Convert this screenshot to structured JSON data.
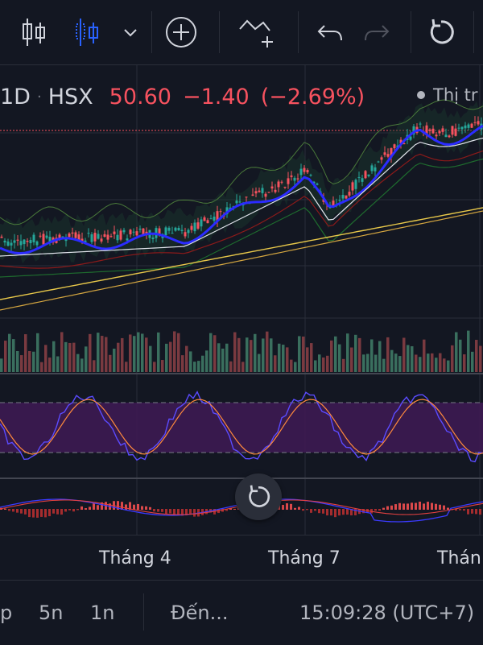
{
  "symbol_bar": {
    "interval": "1D",
    "exchange": "HSX",
    "last_price": "50.60",
    "change": "−1.40",
    "change_pct": "(−2.69%)",
    "market_status": "Thị tr"
  },
  "toolbar": {
    "icons": [
      "candles-icon",
      "candles-selected-icon",
      "chevron-down-icon",
      "add-circle-icon",
      "indicators-icon",
      "undo-icon",
      "redo-icon",
      "reset-icon"
    ]
  },
  "time_axis": {
    "labels": [
      "Tháng 4",
      "Tháng 7",
      "Thán"
    ]
  },
  "bottom_bar": {
    "range_1": "p",
    "range_2": "5n",
    "range_3": "1n",
    "goto_label": "Đến...",
    "clock": "15:09:28 (UTC+7)"
  },
  "colors": {
    "background": "#131722",
    "up": "#26a69a",
    "down": "#f7525f",
    "ma_blue": "#2b2bff",
    "rsi_fill": "#4a1d5c"
  }
}
